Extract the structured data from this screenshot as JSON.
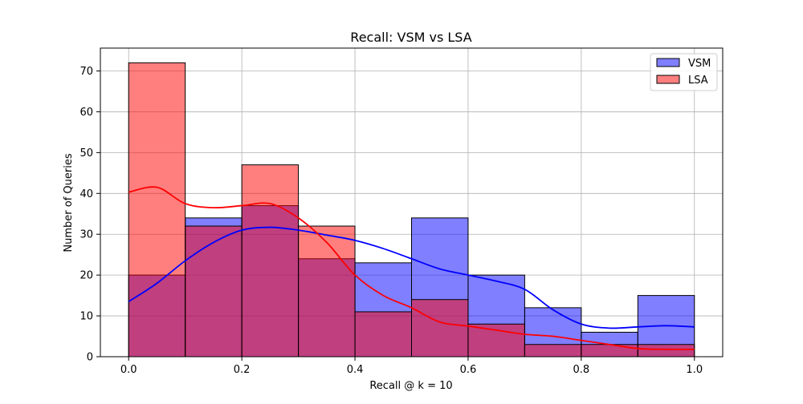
{
  "chart_data": {
    "type": "histogram",
    "title": "Recall: VSM vs LSA",
    "xlabel": "Recall @ k = 10",
    "ylabel": "Number of Queries",
    "xlim": [
      -0.05,
      1.05
    ],
    "ylim": [
      0,
      75.6
    ],
    "xticks": [
      0.0,
      0.2,
      0.4,
      0.6,
      0.8,
      1.0
    ],
    "xtick_labels": [
      "0.0",
      "0.2",
      "0.4",
      "0.6",
      "0.8",
      "1.0"
    ],
    "yticks": [
      0,
      10,
      20,
      30,
      40,
      50,
      60,
      70
    ],
    "ytick_labels": [
      "0",
      "10",
      "20",
      "30",
      "40",
      "50",
      "60",
      "70"
    ],
    "grid": true,
    "legend_position": "top-right",
    "bin_edges": [
      0.0,
      0.1,
      0.2,
      0.3,
      0.4,
      0.5,
      0.6,
      0.7,
      0.8,
      0.9,
      1.0
    ],
    "series": [
      {
        "name": "VSM",
        "color": "#0000ff",
        "values": [
          20,
          34,
          37,
          24,
          23,
          34,
          20,
          12,
          6,
          15
        ],
        "kde": {
          "x": [
            0.0,
            0.05,
            0.1,
            0.15,
            0.2,
            0.25,
            0.3,
            0.35,
            0.4,
            0.45,
            0.5,
            0.55,
            0.6,
            0.65,
            0.7,
            0.75,
            0.8,
            0.85,
            0.9,
            0.95,
            1.0
          ],
          "y": [
            13.5,
            18,
            23.5,
            28,
            31,
            31.7,
            31,
            29.8,
            28.5,
            26.5,
            24,
            21.5,
            20,
            18.5,
            16.5,
            11.5,
            8,
            7,
            7.3,
            7.6,
            7.3
          ]
        }
      },
      {
        "name": "LSA",
        "color": "#ff0000",
        "values": [
          72,
          32,
          47,
          32,
          11,
          14,
          8,
          3,
          3,
          3
        ],
        "kde": {
          "x": [
            0.0,
            0.05,
            0.1,
            0.15,
            0.2,
            0.25,
            0.3,
            0.35,
            0.4,
            0.45,
            0.5,
            0.55,
            0.6,
            0.65,
            0.7,
            0.75,
            0.8,
            0.85,
            0.9,
            0.95,
            1.0
          ],
          "y": [
            40.3,
            41.5,
            37.5,
            36.5,
            37,
            37.5,
            34,
            28,
            20,
            15,
            12,
            8.5,
            7.5,
            6.5,
            5.5,
            5,
            4,
            3,
            2,
            1.8,
            1.8
          ]
        }
      }
    ]
  }
}
